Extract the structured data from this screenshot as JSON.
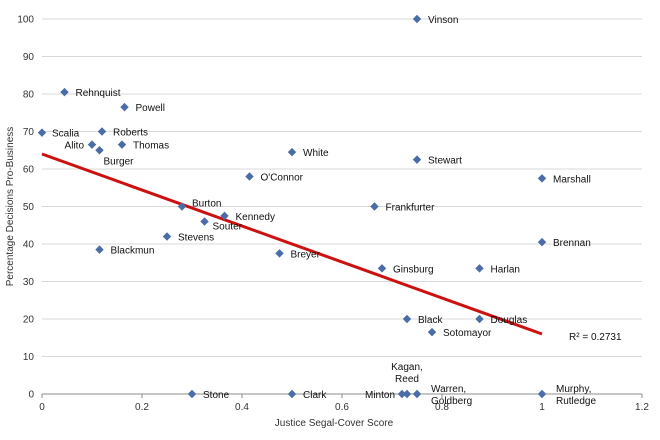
{
  "chart_data": {
    "type": "scatter",
    "xlabel": "Justice Segal-Cover Score",
    "ylabel": "Percentage Decisions Pro-Business",
    "xlim": [
      0,
      1.2
    ],
    "ylim": [
      0,
      100
    ],
    "xticks": [
      0,
      0.2,
      0.4,
      0.6,
      0.8,
      1,
      1.2
    ],
    "xtick_labels": [
      "0",
      "0.2",
      "0.4",
      "0.6",
      "0.8",
      "1",
      "1.2"
    ],
    "yticks": [
      0,
      10,
      20,
      30,
      40,
      50,
      60,
      70,
      80,
      90,
      100
    ],
    "ytick_labels": [
      "0",
      "10",
      "20",
      "30",
      "40",
      "50",
      "60",
      "70",
      "80",
      "90",
      "100"
    ],
    "grid": "horizontal",
    "marker_color": "#4a6da7",
    "trendline_color": "#cc1111",
    "points": [
      {
        "label": "Vinson",
        "x": 0.75,
        "y": 100
      },
      {
        "label": "Rehnquist",
        "x": 0.045,
        "y": 80.5
      },
      {
        "label": "Powell",
        "x": 0.165,
        "y": 76.5
      },
      {
        "label": "Scalia",
        "x": 0.0,
        "y": 69.7
      },
      {
        "label": "Roberts",
        "x": 0.12,
        "y": 70
      },
      {
        "label": "Alito",
        "x": 0.1,
        "y": 66.5
      },
      {
        "label": "Thomas",
        "x": 0.16,
        "y": 66.5
      },
      {
        "label": "Burger",
        "x": 0.115,
        "y": 65
      },
      {
        "label": "White",
        "x": 0.5,
        "y": 64.5
      },
      {
        "label": "Stewart",
        "x": 0.75,
        "y": 62.5
      },
      {
        "label": "O'Connor",
        "x": 0.415,
        "y": 58
      },
      {
        "label": "Marshall",
        "x": 1.0,
        "y": 57.5
      },
      {
        "label": "Burton",
        "x": 0.28,
        "y": 50
      },
      {
        "label": "Frankfurter",
        "x": 0.665,
        "y": 50
      },
      {
        "label": "Kennedy",
        "x": 0.365,
        "y": 47.5
      },
      {
        "label": "Souter",
        "x": 0.325,
        "y": 46
      },
      {
        "label": "Stevens",
        "x": 0.25,
        "y": 42
      },
      {
        "label": "Brennan",
        "x": 1.0,
        "y": 40.5
      },
      {
        "label": "Blackmun",
        "x": 0.115,
        "y": 38.5
      },
      {
        "label": "Breyer",
        "x": 0.475,
        "y": 37.5
      },
      {
        "label": "Ginsburg",
        "x": 0.68,
        "y": 33.5
      },
      {
        "label": "Harlan",
        "x": 0.875,
        "y": 33.5
      },
      {
        "label": "Black",
        "x": 0.73,
        "y": 20
      },
      {
        "label": "Douglas",
        "x": 0.875,
        "y": 20
      },
      {
        "label": "Sotomayor",
        "x": 0.78,
        "y": 16.5
      },
      {
        "label": "Stone",
        "x": 0.3,
        "y": 0
      },
      {
        "label": "Clark",
        "x": 0.5,
        "y": 0
      },
      {
        "label": "Minton",
        "x": 0.72,
        "y": 0
      },
      {
        "label": "Kagan, Reed",
        "x": 0.73,
        "y": 0
      },
      {
        "label": "Warren, Goldberg",
        "x": 0.75,
        "y": 0
      },
      {
        "label": "Murphy, Rutledge",
        "x": 1.0,
        "y": 0
      }
    ],
    "trendline": {
      "x": [
        0,
        1
      ],
      "y": [
        64,
        16
      ]
    },
    "r_squared_label": "R² = 0.2731"
  }
}
